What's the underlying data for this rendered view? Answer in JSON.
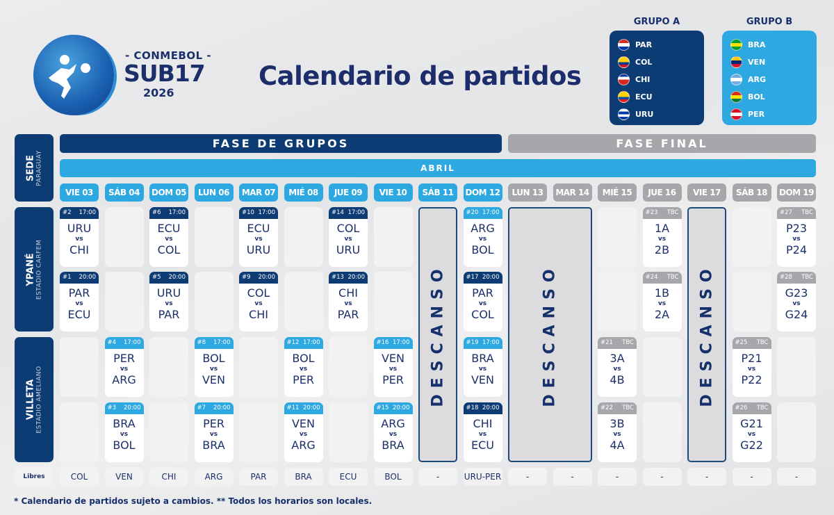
{
  "logo": {
    "org": "- CONMEBOL -",
    "name": "SUB17",
    "year": "2026"
  },
  "title": "Calendario de partidos",
  "groups": [
    {
      "title": "GRUPO A",
      "color": "#0d3b73",
      "teams": [
        {
          "code": "PAR",
          "flag": [
            "#d52b1e",
            "#ffffff",
            "#0038a8"
          ]
        },
        {
          "code": "COL",
          "flag": [
            "#fcd116",
            "#fcd116",
            "#003893",
            "#ce1126"
          ]
        },
        {
          "code": "CHI",
          "flag": [
            "#0039a6",
            "#ffffff",
            "#d52b1e",
            "#d52b1e"
          ]
        },
        {
          "code": "ECU",
          "flag": [
            "#ffd100",
            "#ffd100",
            "#034ea2",
            "#ed1c24"
          ]
        },
        {
          "code": "URU",
          "flag": [
            "#ffffff",
            "#0038a8",
            "#ffffff",
            "#0038a8"
          ]
        }
      ]
    },
    {
      "title": "GRUPO B",
      "color": "#2ea8e0",
      "teams": [
        {
          "code": "BRA",
          "flag": [
            "#009c3b",
            "#ffdf00",
            "#009c3b"
          ]
        },
        {
          "code": "VEN",
          "flag": [
            "#ffcc00",
            "#00247d",
            "#cf142b"
          ]
        },
        {
          "code": "ARG",
          "flag": [
            "#74acdf",
            "#ffffff",
            "#74acdf"
          ]
        },
        {
          "code": "BOL",
          "flag": [
            "#d52b1e",
            "#f9e300",
            "#007934"
          ]
        },
        {
          "code": "PER",
          "flag": [
            "#d91023",
            "#ffffff",
            "#d91023"
          ]
        }
      ]
    }
  ],
  "colors": {
    "navy": "#0d3b73",
    "light": "#2ea8e0",
    "gray": "#a6a7aa"
  },
  "phases": {
    "groups": "FASE DE GRUPOS",
    "final": "FASE FINAL"
  },
  "month": "ABRIL",
  "sede": {
    "label": "SEDE",
    "sub": "PARAGUAY"
  },
  "venues": [
    {
      "name": "YPANÉ",
      "stadium": "ESTADIO CARFEM"
    },
    {
      "name": "VILLETA",
      "stadium": "ESTADIO AMELIANO"
    }
  ],
  "days": [
    {
      "label": "VIE 03",
      "phase": "g"
    },
    {
      "label": "SÁB 04",
      "phase": "g"
    },
    {
      "label": "DOM 05",
      "phase": "g"
    },
    {
      "label": "LUN 06",
      "phase": "g"
    },
    {
      "label": "MAR 07",
      "phase": "g"
    },
    {
      "label": "MIÉ 08",
      "phase": "g"
    },
    {
      "label": "JUE 09",
      "phase": "g"
    },
    {
      "label": "VIE 10",
      "phase": "g"
    },
    {
      "label": "SÁB 11",
      "phase": "g"
    },
    {
      "label": "DOM 12",
      "phase": "g"
    },
    {
      "label": "LUN 13",
      "phase": "f"
    },
    {
      "label": "MAR 14",
      "phase": "f"
    },
    {
      "label": "MIÉ 15",
      "phase": "f"
    },
    {
      "label": "JUE 16",
      "phase": "f"
    },
    {
      "label": "VIE 17",
      "phase": "f"
    },
    {
      "label": "SÁB 18",
      "phase": "f"
    },
    {
      "label": "DOM 19",
      "phase": "f"
    }
  ],
  "rest_label": "DESCANSO",
  "rest_days": [
    {
      "from": 8,
      "to": 8
    },
    {
      "from": 10,
      "to": 11
    },
    {
      "from": 14,
      "to": 14
    }
  ],
  "matches": [
    {
      "day": 0,
      "slot": 0,
      "num": "#2",
      "time": "17:00",
      "home": "URU",
      "away": "CHI",
      "group": "A"
    },
    {
      "day": 0,
      "slot": 1,
      "num": "#1",
      "time": "20:00",
      "home": "PAR",
      "away": "ECU",
      "group": "A"
    },
    {
      "day": 2,
      "slot": 0,
      "num": "#6",
      "time": "17:00",
      "home": "ECU",
      "away": "COL",
      "group": "A"
    },
    {
      "day": 2,
      "slot": 1,
      "num": "#5",
      "time": "20:00",
      "home": "URU",
      "away": "PAR",
      "group": "A"
    },
    {
      "day": 4,
      "slot": 0,
      "num": "#10",
      "time": "17:00",
      "home": "ECU",
      "away": "URU",
      "group": "A"
    },
    {
      "day": 4,
      "slot": 1,
      "num": "#9",
      "time": "20:00",
      "home": "COL",
      "away": "CHI",
      "group": "A"
    },
    {
      "day": 6,
      "slot": 0,
      "num": "#14",
      "time": "17:00",
      "home": "COL",
      "away": "URU",
      "group": "A"
    },
    {
      "day": 6,
      "slot": 1,
      "num": "#13",
      "time": "20:00",
      "home": "CHI",
      "away": "PAR",
      "group": "A"
    },
    {
      "day": 9,
      "slot": 0,
      "num": "#20",
      "time": "17:00",
      "home": "ARG",
      "away": "BOL",
      "group": "B"
    },
    {
      "day": 9,
      "slot": 1,
      "num": "#17",
      "time": "20:00",
      "home": "PAR",
      "away": "COL",
      "group": "A"
    },
    {
      "day": 13,
      "slot": 0,
      "num": "#23",
      "time": "TBC",
      "home": "1A",
      "away": "2B",
      "group": "KO"
    },
    {
      "day": 13,
      "slot": 1,
      "num": "#24",
      "time": "TBC",
      "home": "1B",
      "away": "2A",
      "group": "KO"
    },
    {
      "day": 16,
      "slot": 0,
      "num": "#27",
      "time": "TBC",
      "home": "P23",
      "away": "P24",
      "group": "KO"
    },
    {
      "day": 16,
      "slot": 1,
      "num": "#28",
      "time": "TBC",
      "home": "G23",
      "away": "G24",
      "group": "KO"
    },
    {
      "day": 1,
      "slot": 2,
      "num": "#4",
      "time": "17:00",
      "home": "PER",
      "away": "ARG",
      "group": "B"
    },
    {
      "day": 1,
      "slot": 3,
      "num": "#3",
      "time": "20:00",
      "home": "BRA",
      "away": "BOL",
      "group": "B"
    },
    {
      "day": 3,
      "slot": 2,
      "num": "#8",
      "time": "17:00",
      "home": "BOL",
      "away": "VEN",
      "group": "B"
    },
    {
      "day": 3,
      "slot": 3,
      "num": "#7",
      "time": "20:00",
      "home": "PER",
      "away": "BRA",
      "group": "B"
    },
    {
      "day": 5,
      "slot": 2,
      "num": "#12",
      "time": "17:00",
      "home": "BOL",
      "away": "PER",
      "group": "B"
    },
    {
      "day": 5,
      "slot": 3,
      "num": "#11",
      "time": "20:00",
      "home": "VEN",
      "away": "ARG",
      "group": "B"
    },
    {
      "day": 7,
      "slot": 2,
      "num": "#16",
      "time": "17:00",
      "home": "VEN",
      "away": "PER",
      "group": "B"
    },
    {
      "day": 7,
      "slot": 3,
      "num": "#15",
      "time": "20:00",
      "home": "ARG",
      "away": "BRA",
      "group": "B"
    },
    {
      "day": 9,
      "slot": 2,
      "num": "#19",
      "time": "17:00",
      "home": "BRA",
      "away": "VEN",
      "group": "B"
    },
    {
      "day": 9,
      "slot": 3,
      "num": "#18",
      "time": "20:00",
      "home": "CHI",
      "away": "ECU",
      "group": "A"
    },
    {
      "day": 12,
      "slot": 2,
      "num": "#21",
      "time": "TBC",
      "home": "3A",
      "away": "4B",
      "group": "KO"
    },
    {
      "day": 12,
      "slot": 3,
      "num": "#22",
      "time": "TBC",
      "home": "3B",
      "away": "4A",
      "group": "KO"
    },
    {
      "day": 15,
      "slot": 2,
      "num": "#25",
      "time": "TBC",
      "home": "P21",
      "away": "P22",
      "group": "KO"
    },
    {
      "day": 15,
      "slot": 3,
      "num": "#26",
      "time": "TBC",
      "home": "G21",
      "away": "G22",
      "group": "KO"
    }
  ],
  "vs": "vs",
  "libres_label": "Libres",
  "libres": [
    "COL",
    "VEN",
    "CHI",
    "ARG",
    "PAR",
    "BRA",
    "ECU",
    "BOL",
    "-",
    "URU-PER",
    "-",
    "-",
    "-",
    "-",
    "-",
    "-",
    "-"
  ],
  "footnote": "* Calendario de partidos sujeto a cambios. ** Todos los horarios son locales."
}
